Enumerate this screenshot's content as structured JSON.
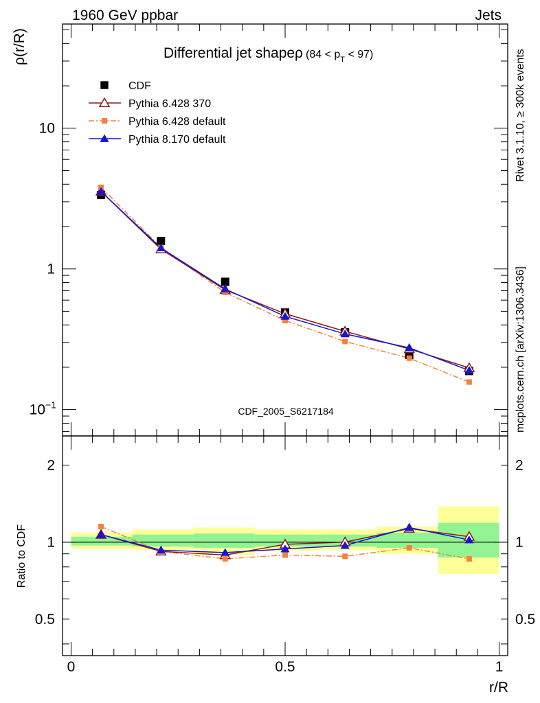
{
  "header": {
    "left": "1960 GeV ppbar",
    "right": "Jets"
  },
  "side_labels": {
    "rivet": "Rivet 3.1.10, ≥ 300k events",
    "source": "mcplots.cern.ch [arXiv:1306.3436]"
  },
  "watermark": "CDF_2005_S6217184",
  "colors": {
    "cdf": "#000000",
    "py6_370": "#8b1a1a",
    "py6_default": "#f5813a",
    "py8_default": "#1515d4",
    "band_outer": "#ffff9a",
    "band_inner": "#93f393"
  },
  "chart_data": [
    {
      "type": "line",
      "title": "Differential jet shapeρ",
      "title_cut": "(84 < p_T < 97)",
      "title_cut_parts": {
        "open": "(84 < p",
        "sub": "T",
        "close": " < 97)"
      },
      "ylabel": "ρ(r/R)",
      "yscale": "log",
      "ylim": [
        0.065,
        55
      ],
      "xlim": [
        -0.02,
        1.02
      ],
      "y_ticks": [
        {
          "value": 0.1,
          "label": "10",
          "exp": "−1"
        },
        {
          "value": 1,
          "label": "1"
        },
        {
          "value": 10,
          "label": "10"
        }
      ],
      "legend_position": "top-left",
      "x": [
        0.07,
        0.21,
        0.36,
        0.5,
        0.64,
        0.79,
        0.93
      ],
      "series": [
        {
          "name": "CDF",
          "key": "cdf",
          "marker": "filled-square",
          "values": [
            3.35,
            1.58,
            0.81,
            0.49,
            0.355,
            0.245,
            0.188
          ]
        },
        {
          "name": "Pythia 6.428 370",
          "key": "py6_370",
          "marker": "open-triangle",
          "values": [
            3.55,
            1.38,
            0.71,
            0.48,
            0.36,
            0.27,
            0.198
          ]
        },
        {
          "name": "Pythia 6.428 default",
          "key": "py6_default",
          "marker": "small-square",
          "values": [
            3.8,
            1.42,
            0.68,
            0.43,
            0.305,
            0.232,
            0.157
          ]
        },
        {
          "name": "Pythia 8.170 default",
          "key": "py8_default",
          "marker": "filled-triangle",
          "values": [
            3.55,
            1.41,
            0.72,
            0.46,
            0.345,
            0.275,
            0.19
          ]
        }
      ]
    },
    {
      "type": "line",
      "xlabel": "r/R",
      "ylabel": "Ratio to CDF",
      "yscale": "log",
      "ylim": [
        0.36,
        2.6
      ],
      "xlim": [
        -0.02,
        1.02
      ],
      "y_ticks": [
        {
          "value": 0.5,
          "label": "0.5"
        },
        {
          "value": 1,
          "label": "1"
        },
        {
          "value": 2,
          "label": "2"
        }
      ],
      "x_ticks": [
        {
          "value": 0,
          "label": "0"
        },
        {
          "value": 0.5,
          "label": "0.5"
        },
        {
          "value": 1,
          "label": "1"
        }
      ],
      "bands": {
        "x_edges": [
          0.0,
          0.143,
          0.286,
          0.429,
          0.571,
          0.714,
          0.857,
          1.0
        ],
        "outer": [
          [
            0.94,
            1.09
          ],
          [
            0.93,
            1.12
          ],
          [
            0.89,
            1.14
          ],
          [
            0.92,
            1.12
          ],
          [
            0.93,
            1.12
          ],
          [
            0.9,
            1.15
          ],
          [
            0.75,
            1.38
          ]
        ],
        "inner": [
          [
            0.97,
            1.05
          ],
          [
            0.96,
            1.07
          ],
          [
            0.95,
            1.08
          ],
          [
            0.96,
            1.07
          ],
          [
            0.96,
            1.07
          ],
          [
            0.95,
            1.09
          ],
          [
            0.87,
            1.19
          ]
        ]
      },
      "x": [
        0.07,
        0.21,
        0.36,
        0.5,
        0.64,
        0.79,
        0.93
      ],
      "series": [
        {
          "name": "Pythia 6.428 370",
          "key": "py6_370",
          "marker": "open-triangle",
          "values": [
            1.07,
            0.92,
            0.89,
            0.98,
            1.0,
            1.13,
            1.05
          ]
        },
        {
          "name": "Pythia 6.428 default",
          "key": "py6_default",
          "marker": "small-square",
          "values": [
            1.15,
            0.92,
            0.86,
            0.89,
            0.88,
            0.95,
            0.86
          ]
        },
        {
          "name": "Pythia 8.170 default",
          "key": "py8_default",
          "marker": "filled-triangle",
          "values": [
            1.07,
            0.93,
            0.91,
            0.94,
            0.97,
            1.14,
            1.02
          ]
        }
      ]
    }
  ]
}
